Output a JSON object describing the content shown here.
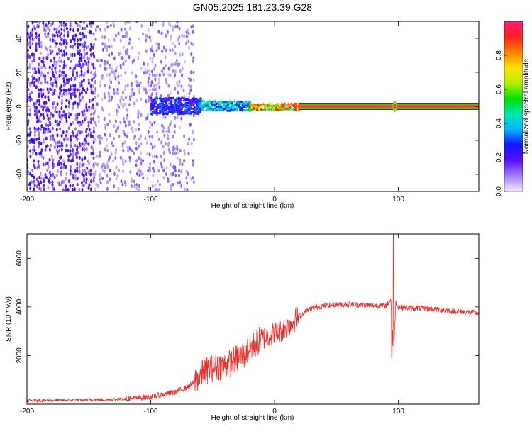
{
  "title": "GN05.2025.181.23.39.G28",
  "colors": {
    "snr_line": "#e8302c",
    "colorbar": [
      "#f7e8fb",
      "#a080ff",
      "#5a10ff",
      "#1414ff",
      "#00b4ff",
      "#00e8b0",
      "#00e000",
      "#b4f000",
      "#ffe000",
      "#ff8000",
      "#ff1e1e",
      "#ff1e78"
    ]
  },
  "chart_data": [
    {
      "type": "heatmap",
      "xlabel": "Height of straight line (km)",
      "ylabel": "Frequency (Hz)",
      "xlim": [
        -200,
        165
      ],
      "ylim": [
        -50,
        50
      ],
      "xticks": [
        "-200",
        "-100",
        "0",
        "100"
      ],
      "xtick_values": [
        -200,
        -100,
        0,
        100
      ],
      "yticks": [
        "-40",
        "-20",
        "0",
        "20",
        "40"
      ],
      "ytick_values": [
        -40,
        -20,
        0,
        20,
        40
      ],
      "colorbar": {
        "label": "Normalized spectral amplitude",
        "range": [
          0,
          1
        ],
        "ticks": [
          "0.0",
          "0.2",
          "0.4",
          "0.6",
          "0.8"
        ],
        "tick_values": [
          0.0,
          0.2,
          0.4,
          0.6,
          0.8
        ]
      },
      "regions": [
        {
          "x": [
            -200,
            -145
          ],
          "freq_span": 100,
          "amplitude": 0.15
        },
        {
          "x": [
            -145,
            -65
          ],
          "freq_span": 100,
          "amplitude": 0.08
        },
        {
          "x": [
            -100,
            -60
          ],
          "freq_span": 10,
          "amplitude": 0.3
        },
        {
          "x": [
            -60,
            -20
          ],
          "freq_span": 6,
          "amplitude": 0.45
        },
        {
          "x": [
            -20,
            20
          ],
          "freq_span": 3,
          "amplitude": 0.85
        },
        {
          "x": [
            20,
            165
          ],
          "freq_span": 2,
          "amplitude": 1.0
        }
      ]
    },
    {
      "type": "line",
      "xlabel": "Height of straight line (km)",
      "ylabel": "SNR (10 * v/v)",
      "xlim": [
        -200,
        165
      ],
      "ylim": [
        0,
        7000
      ],
      "xticks": [
        "-200",
        "-100",
        "0",
        "100"
      ],
      "xtick_values": [
        -200,
        -100,
        0,
        100
      ],
      "yticks": [
        "2000",
        "4000",
        "6000"
      ],
      "ytick_values": [
        2000,
        4000,
        6000
      ],
      "series": [
        {
          "x": [
            -200,
            -180,
            -160,
            -140,
            -120,
            -100,
            -90,
            -80,
            -70,
            -65,
            -60,
            -55,
            -50,
            -45,
            -40,
            -35,
            -30,
            -25,
            -20,
            -15,
            -10,
            -5,
            0,
            5,
            10,
            15,
            20,
            25,
            30,
            40,
            50,
            60,
            70,
            80,
            90,
            94,
            96,
            98,
            100,
            110,
            120,
            130,
            140,
            150,
            165
          ],
          "y": [
            150,
            160,
            170,
            180,
            220,
            300,
            400,
            500,
            700,
            900,
            1200,
            1400,
            1500,
            1550,
            1600,
            1700,
            1900,
            2000,
            2300,
            2500,
            2700,
            2800,
            2900,
            3000,
            3200,
            3400,
            3600,
            3800,
            3950,
            4050,
            4100,
            4100,
            4080,
            4060,
            4050,
            4300,
            2000,
            4200,
            4000,
            3950,
            3950,
            3900,
            3850,
            3800,
            3750
          ]
        }
      ],
      "spikes": [
        {
          "x": 96,
          "y": 7000
        },
        {
          "x": 95,
          "y": 1900
        }
      ]
    }
  ]
}
